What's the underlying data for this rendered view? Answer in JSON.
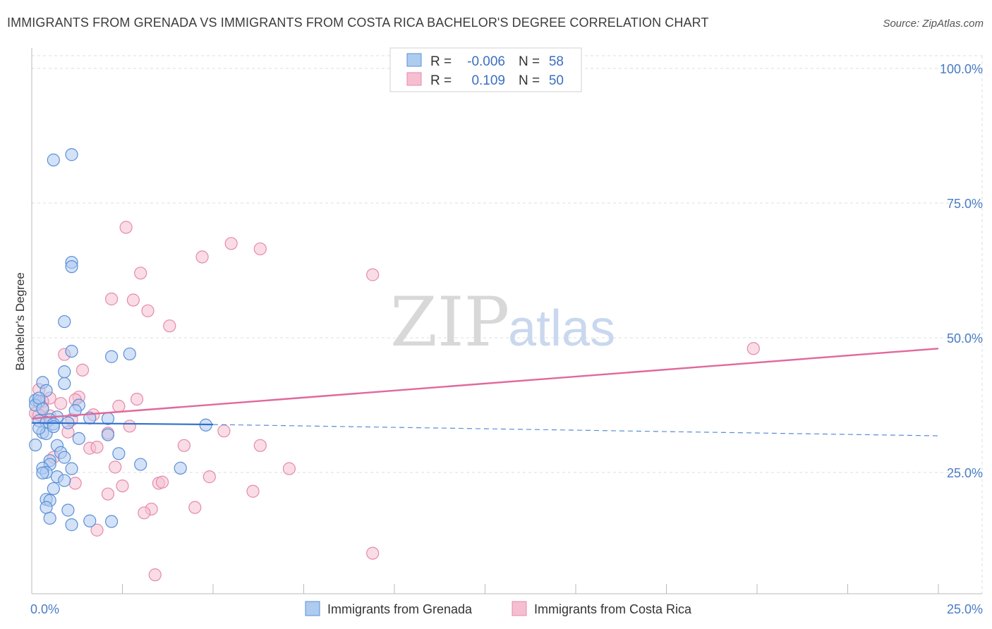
{
  "title": "IMMIGRANTS FROM GRENADA VS IMMIGRANTS FROM COSTA RICA BACHELOR'S DEGREE CORRELATION CHART",
  "source": "Source: ZipAtlas.com",
  "watermark": {
    "zip": "ZIP",
    "atlas": "atlas"
  },
  "colors": {
    "blue_fill": "#aecbf0",
    "blue_stroke": "#5b8fd6",
    "blue_line": "#2f6fcc",
    "pink_fill": "#f6bfd1",
    "pink_stroke": "#e58aaa",
    "pink_line": "#e0699a",
    "axis_tick": "#4a7cc4",
    "grid": "#dddddd"
  },
  "legend": {
    "rows": [
      {
        "r_label": "R =",
        "r_value": "-0.006",
        "n_label": "N =",
        "n_value": "58"
      },
      {
        "r_label": "R =",
        "r_value": "0.109",
        "n_label": "N =",
        "n_value": "50"
      }
    ]
  },
  "chart_data": {
    "type": "scatter",
    "title": "IMMIGRANTS FROM GRENADA VS IMMIGRANTS FROM COSTA RICA BACHELOR'S DEGREE CORRELATION CHART",
    "xlabel": "",
    "ylabel": "Bachelor's Degree",
    "xlim": [
      0,
      25
    ],
    "ylim": [
      0,
      105
    ],
    "x_tick_labels": [
      "0.0%",
      "25.0%"
    ],
    "y_ticks": [
      25,
      50,
      75,
      100
    ],
    "y_tick_labels": [
      "25.0%",
      "50.0%",
      "75.0%",
      "100.0%"
    ],
    "grid": true,
    "legend_position": "top-center",
    "series": [
      {
        "name": "Immigrants from Grenada",
        "color": "blue",
        "trend": {
          "x0": 0,
          "y0": 34.2,
          "x1": 5.0,
          "y1": 33.9,
          "dashed_to_x": 25,
          "dashed_to_y": 31.8
        },
        "points": [
          [
            0.6,
            83.0
          ],
          [
            1.1,
            84.0
          ],
          [
            1.1,
            64.0
          ],
          [
            1.1,
            63.2
          ],
          [
            0.9,
            53.0
          ],
          [
            2.7,
            47.0
          ],
          [
            2.2,
            46.5
          ],
          [
            1.1,
            47.5
          ],
          [
            0.9,
            43.7
          ],
          [
            0.9,
            41.5
          ],
          [
            0.3,
            41.7
          ],
          [
            0.4,
            40.2
          ],
          [
            0.1,
            38.4
          ],
          [
            0.2,
            38.2
          ],
          [
            0.1,
            37.5
          ],
          [
            1.3,
            37.5
          ],
          [
            1.2,
            36.5
          ],
          [
            0.7,
            35.3
          ],
          [
            1.6,
            35.1
          ],
          [
            2.1,
            35.0
          ],
          [
            0.5,
            34.8
          ],
          [
            0.2,
            34.6
          ],
          [
            0.4,
            34.3
          ],
          [
            0.6,
            34.0
          ],
          [
            4.8,
            33.8
          ],
          [
            0.3,
            32.4
          ],
          [
            0.1,
            30.1
          ],
          [
            1.3,
            31.3
          ],
          [
            0.7,
            30.0
          ],
          [
            2.1,
            32.0
          ],
          [
            0.4,
            32.2
          ],
          [
            0.8,
            28.7
          ],
          [
            2.4,
            28.5
          ],
          [
            0.9,
            27.8
          ],
          [
            0.5,
            27.2
          ],
          [
            0.5,
            26.5
          ],
          [
            3.0,
            26.5
          ],
          [
            4.1,
            25.8
          ],
          [
            0.3,
            25.8
          ],
          [
            0.4,
            25.0
          ],
          [
            1.1,
            25.7
          ],
          [
            0.3,
            24.9
          ],
          [
            0.7,
            24.2
          ],
          [
            0.9,
            23.5
          ],
          [
            0.6,
            22.0
          ],
          [
            0.4,
            20.0
          ],
          [
            0.5,
            19.8
          ],
          [
            0.4,
            18.5
          ],
          [
            1.0,
            18.0
          ],
          [
            0.5,
            16.5
          ],
          [
            1.6,
            16.0
          ],
          [
            2.2,
            15.9
          ],
          [
            1.1,
            15.3
          ],
          [
            0.2,
            33.2
          ],
          [
            0.6,
            33.5
          ],
          [
            0.3,
            36.8
          ],
          [
            1.0,
            34.2
          ],
          [
            0.2,
            38.8
          ]
        ]
      },
      {
        "name": "Immigrants from Costa Rica",
        "color": "pink",
        "trend": {
          "x0": 0,
          "y0": 35.0,
          "x1": 25,
          "y1": 48.0
        },
        "points": [
          [
            2.6,
            70.5
          ],
          [
            5.5,
            67.5
          ],
          [
            6.3,
            66.5
          ],
          [
            4.7,
            65.0
          ],
          [
            3.0,
            62.0
          ],
          [
            9.4,
            61.7
          ],
          [
            2.2,
            57.2
          ],
          [
            2.8,
            57.0
          ],
          [
            3.2,
            55.0
          ],
          [
            3.8,
            52.2
          ],
          [
            19.9,
            48.0
          ],
          [
            0.9,
            46.9
          ],
          [
            1.4,
            44.0
          ],
          [
            0.2,
            40.4
          ],
          [
            0.5,
            38.8
          ],
          [
            1.3,
            39.0
          ],
          [
            0.3,
            38.2
          ],
          [
            1.2,
            38.5
          ],
          [
            2.9,
            38.6
          ],
          [
            2.4,
            37.3
          ],
          [
            0.8,
            37.8
          ],
          [
            0.3,
            37.0
          ],
          [
            0.1,
            36.0
          ],
          [
            0.2,
            35.7
          ],
          [
            0.5,
            35.5
          ],
          [
            1.7,
            35.7
          ],
          [
            1.1,
            34.8
          ],
          [
            2.7,
            33.6
          ],
          [
            1.0,
            32.5
          ],
          [
            5.3,
            32.7
          ],
          [
            2.1,
            32.3
          ],
          [
            4.2,
            30.0
          ],
          [
            6.3,
            30.0
          ],
          [
            1.6,
            29.5
          ],
          [
            1.8,
            29.7
          ],
          [
            0.6,
            27.8
          ],
          [
            2.3,
            26.0
          ],
          [
            7.1,
            25.7
          ],
          [
            4.9,
            24.2
          ],
          [
            1.2,
            23.0
          ],
          [
            3.5,
            23.0
          ],
          [
            3.6,
            23.2
          ],
          [
            2.5,
            22.5
          ],
          [
            6.1,
            21.5
          ],
          [
            2.1,
            21.0
          ],
          [
            4.5,
            18.5
          ],
          [
            3.3,
            18.2
          ],
          [
            3.1,
            17.5
          ],
          [
            1.8,
            14.3
          ],
          [
            9.4,
            10.0
          ]
        ],
        "extra_points": [
          [
            3.4,
            6.0
          ]
        ]
      }
    ]
  },
  "bottom_legend": {
    "items": [
      {
        "label": "Immigrants from Grenada"
      },
      {
        "label": "Immigrants from Costa Rica"
      }
    ]
  }
}
